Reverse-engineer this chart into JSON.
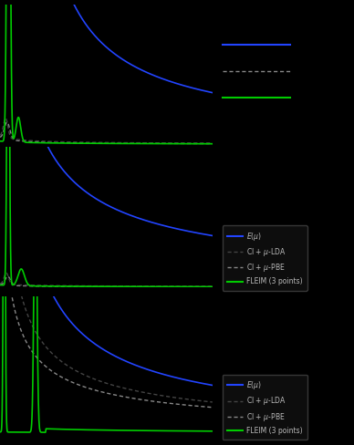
{
  "bg_color": "#000000",
  "blue_color": "#2244ff",
  "dark_dashed_color": "#444444",
  "light_dashed_color": "#888888",
  "green_color": "#00cc00",
  "legend_bg": "#111111",
  "legend_edge_color": "#444444",
  "legend_text_color": "#bbbbbb",
  "fig_width": 3.88,
  "fig_height": 4.88
}
